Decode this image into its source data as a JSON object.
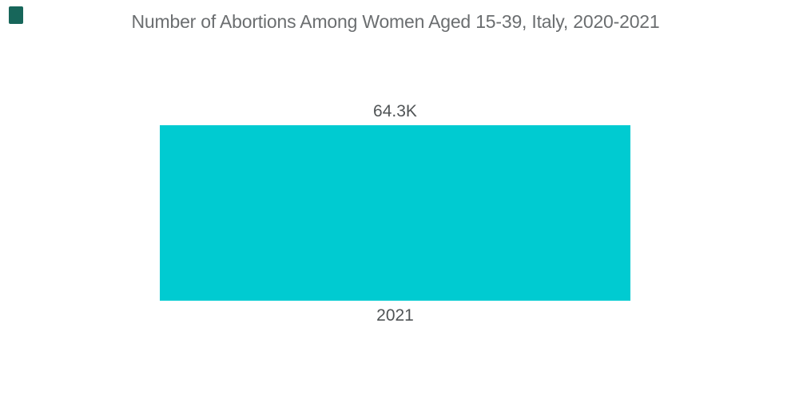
{
  "brand": {
    "logo_icon": "dark-teal-square",
    "logo_color": "#17665A"
  },
  "chart_data": {
    "type": "bar",
    "title": "Number of Abortions Among Women Aged 15-39, Italy, 2020-2021",
    "categories": [
      "2021"
    ],
    "values": [
      64300
    ],
    "value_labels": [
      "64.3K"
    ],
    "xlabel": "",
    "ylabel": "",
    "ylim": [
      0,
      64300
    ],
    "grid": false,
    "legend": false,
    "axes_visible": false,
    "bar_color": "#00CBD1",
    "title_color": "#6B6E70",
    "label_color": "#505456",
    "background_color": "#FFFFFF"
  }
}
